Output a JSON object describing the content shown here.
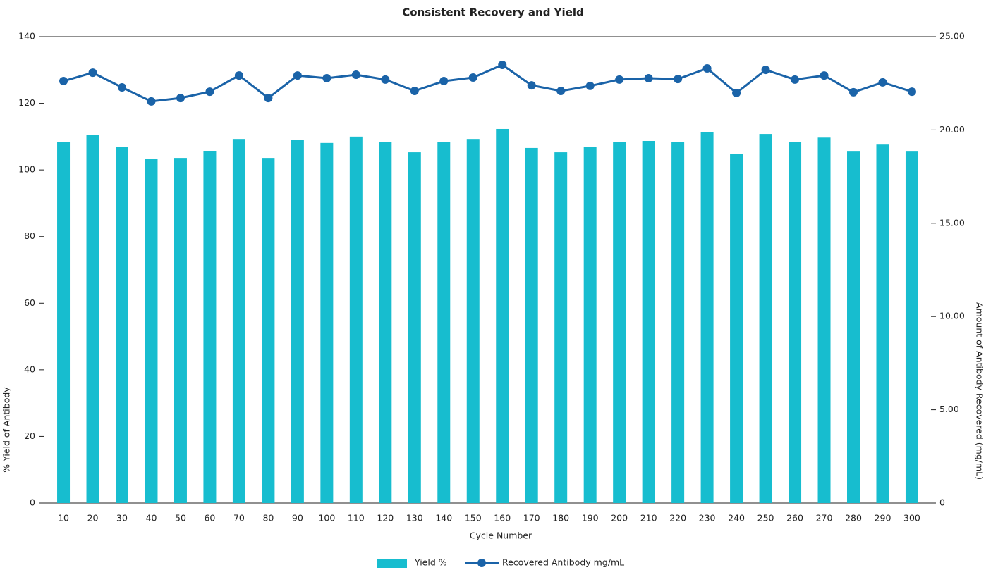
{
  "chart_data": {
    "type": "bar",
    "title": "Consistent Recovery and Yield",
    "xlabel": "Cycle Number",
    "ylabel": "% Yield of Antibody",
    "y2label": "Amount of Antibody Recovered (mg/mL)",
    "categories": [
      "10",
      "20",
      "30",
      "40",
      "50",
      "60",
      "70",
      "80",
      "90",
      "100",
      "110",
      "120",
      "130",
      "140",
      "150",
      "160",
      "170",
      "180",
      "190",
      "200",
      "210",
      "220",
      "230",
      "240",
      "250",
      "260",
      "270",
      "280",
      "290",
      "300"
    ],
    "series": [
      {
        "name": "Yield %",
        "type": "bar",
        "color": "#17bdcf",
        "values": [
          108.3,
          110.4,
          106.8,
          103.2,
          103.6,
          105.7,
          109.3,
          103.6,
          109.1,
          108.1,
          110.0,
          108.3,
          105.3,
          108.3,
          109.3,
          112.3,
          106.6,
          105.3,
          106.8,
          108.3,
          108.7,
          108.3,
          111.4,
          104.7,
          110.8,
          108.3,
          109.7,
          105.5,
          107.6,
          105.5
        ]
      },
      {
        "name": "Recovered Antibody mg/mL",
        "type": "line",
        "axis": "y2",
        "color": "#1a63a8",
        "values": [
          22.62,
          23.07,
          22.28,
          21.53,
          21.71,
          22.05,
          22.92,
          21.71,
          22.92,
          22.77,
          22.96,
          22.7,
          22.09,
          22.62,
          22.81,
          23.49,
          22.39,
          22.09,
          22.36,
          22.7,
          22.77,
          22.73,
          23.3,
          21.98,
          23.22,
          22.7,
          22.92,
          22.02,
          22.55,
          22.05
        ]
      }
    ],
    "ylim": [
      0,
      140
    ],
    "yticks": [
      0,
      20,
      40,
      60,
      80,
      100,
      120,
      140
    ],
    "y2lim": [
      0,
      25
    ],
    "y2ticks": [
      0,
      {
        "value": 5,
        "label": "5.00"
      },
      {
        "value": 10,
        "label": "10.00"
      },
      {
        "value": 15,
        "label": "15.00"
      },
      {
        "value": 20,
        "label": "20.00"
      },
      {
        "value": 25,
        "label": "25.00"
      }
    ],
    "grid": false,
    "legend": "bottom"
  }
}
